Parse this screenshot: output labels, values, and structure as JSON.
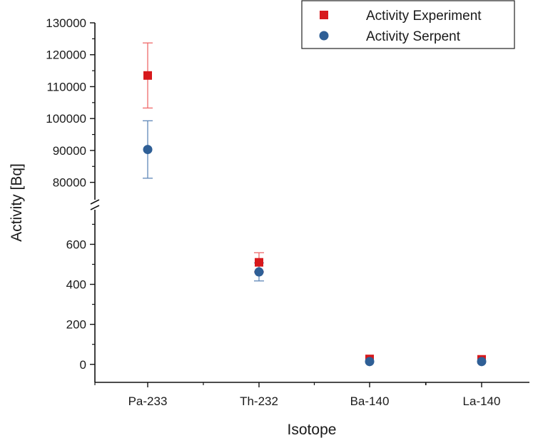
{
  "chart_data": {
    "type": "scatter",
    "xlabel": "Isotope",
    "ylabel": "Activity [Bq]",
    "categories": [
      "Pa-233",
      "Th-232",
      "Ba-140",
      "La-140"
    ],
    "broken_axis": {
      "upper_range": [
        75000,
        130000
      ],
      "lower_range": [
        -90,
        780
      ]
    },
    "y_ticks_upper": [
      80000,
      90000,
      100000,
      110000,
      120000,
      130000
    ],
    "y_ticks_lower": [
      0,
      200,
      400,
      600
    ],
    "y_tick_labels_upper": [
      "80000",
      "90000",
      "100000",
      "110000",
      "120000",
      "130000"
    ],
    "y_tick_labels_lower": [
      "0",
      "200",
      "400",
      "600"
    ],
    "legend_position": "top-right",
    "series": [
      {
        "name": "Activity Experiment",
        "marker": "square",
        "color": "#d7191c",
        "values": [
          113500,
          510,
          27,
          25
        ],
        "errors": [
          10200,
          48,
          3,
          3
        ]
      },
      {
        "name": "Activity Serpent",
        "marker": "circle",
        "color": "#2f5f96",
        "values": [
          90300,
          462,
          14,
          14
        ],
        "errors": [
          9000,
          45,
          2,
          2
        ]
      }
    ]
  }
}
